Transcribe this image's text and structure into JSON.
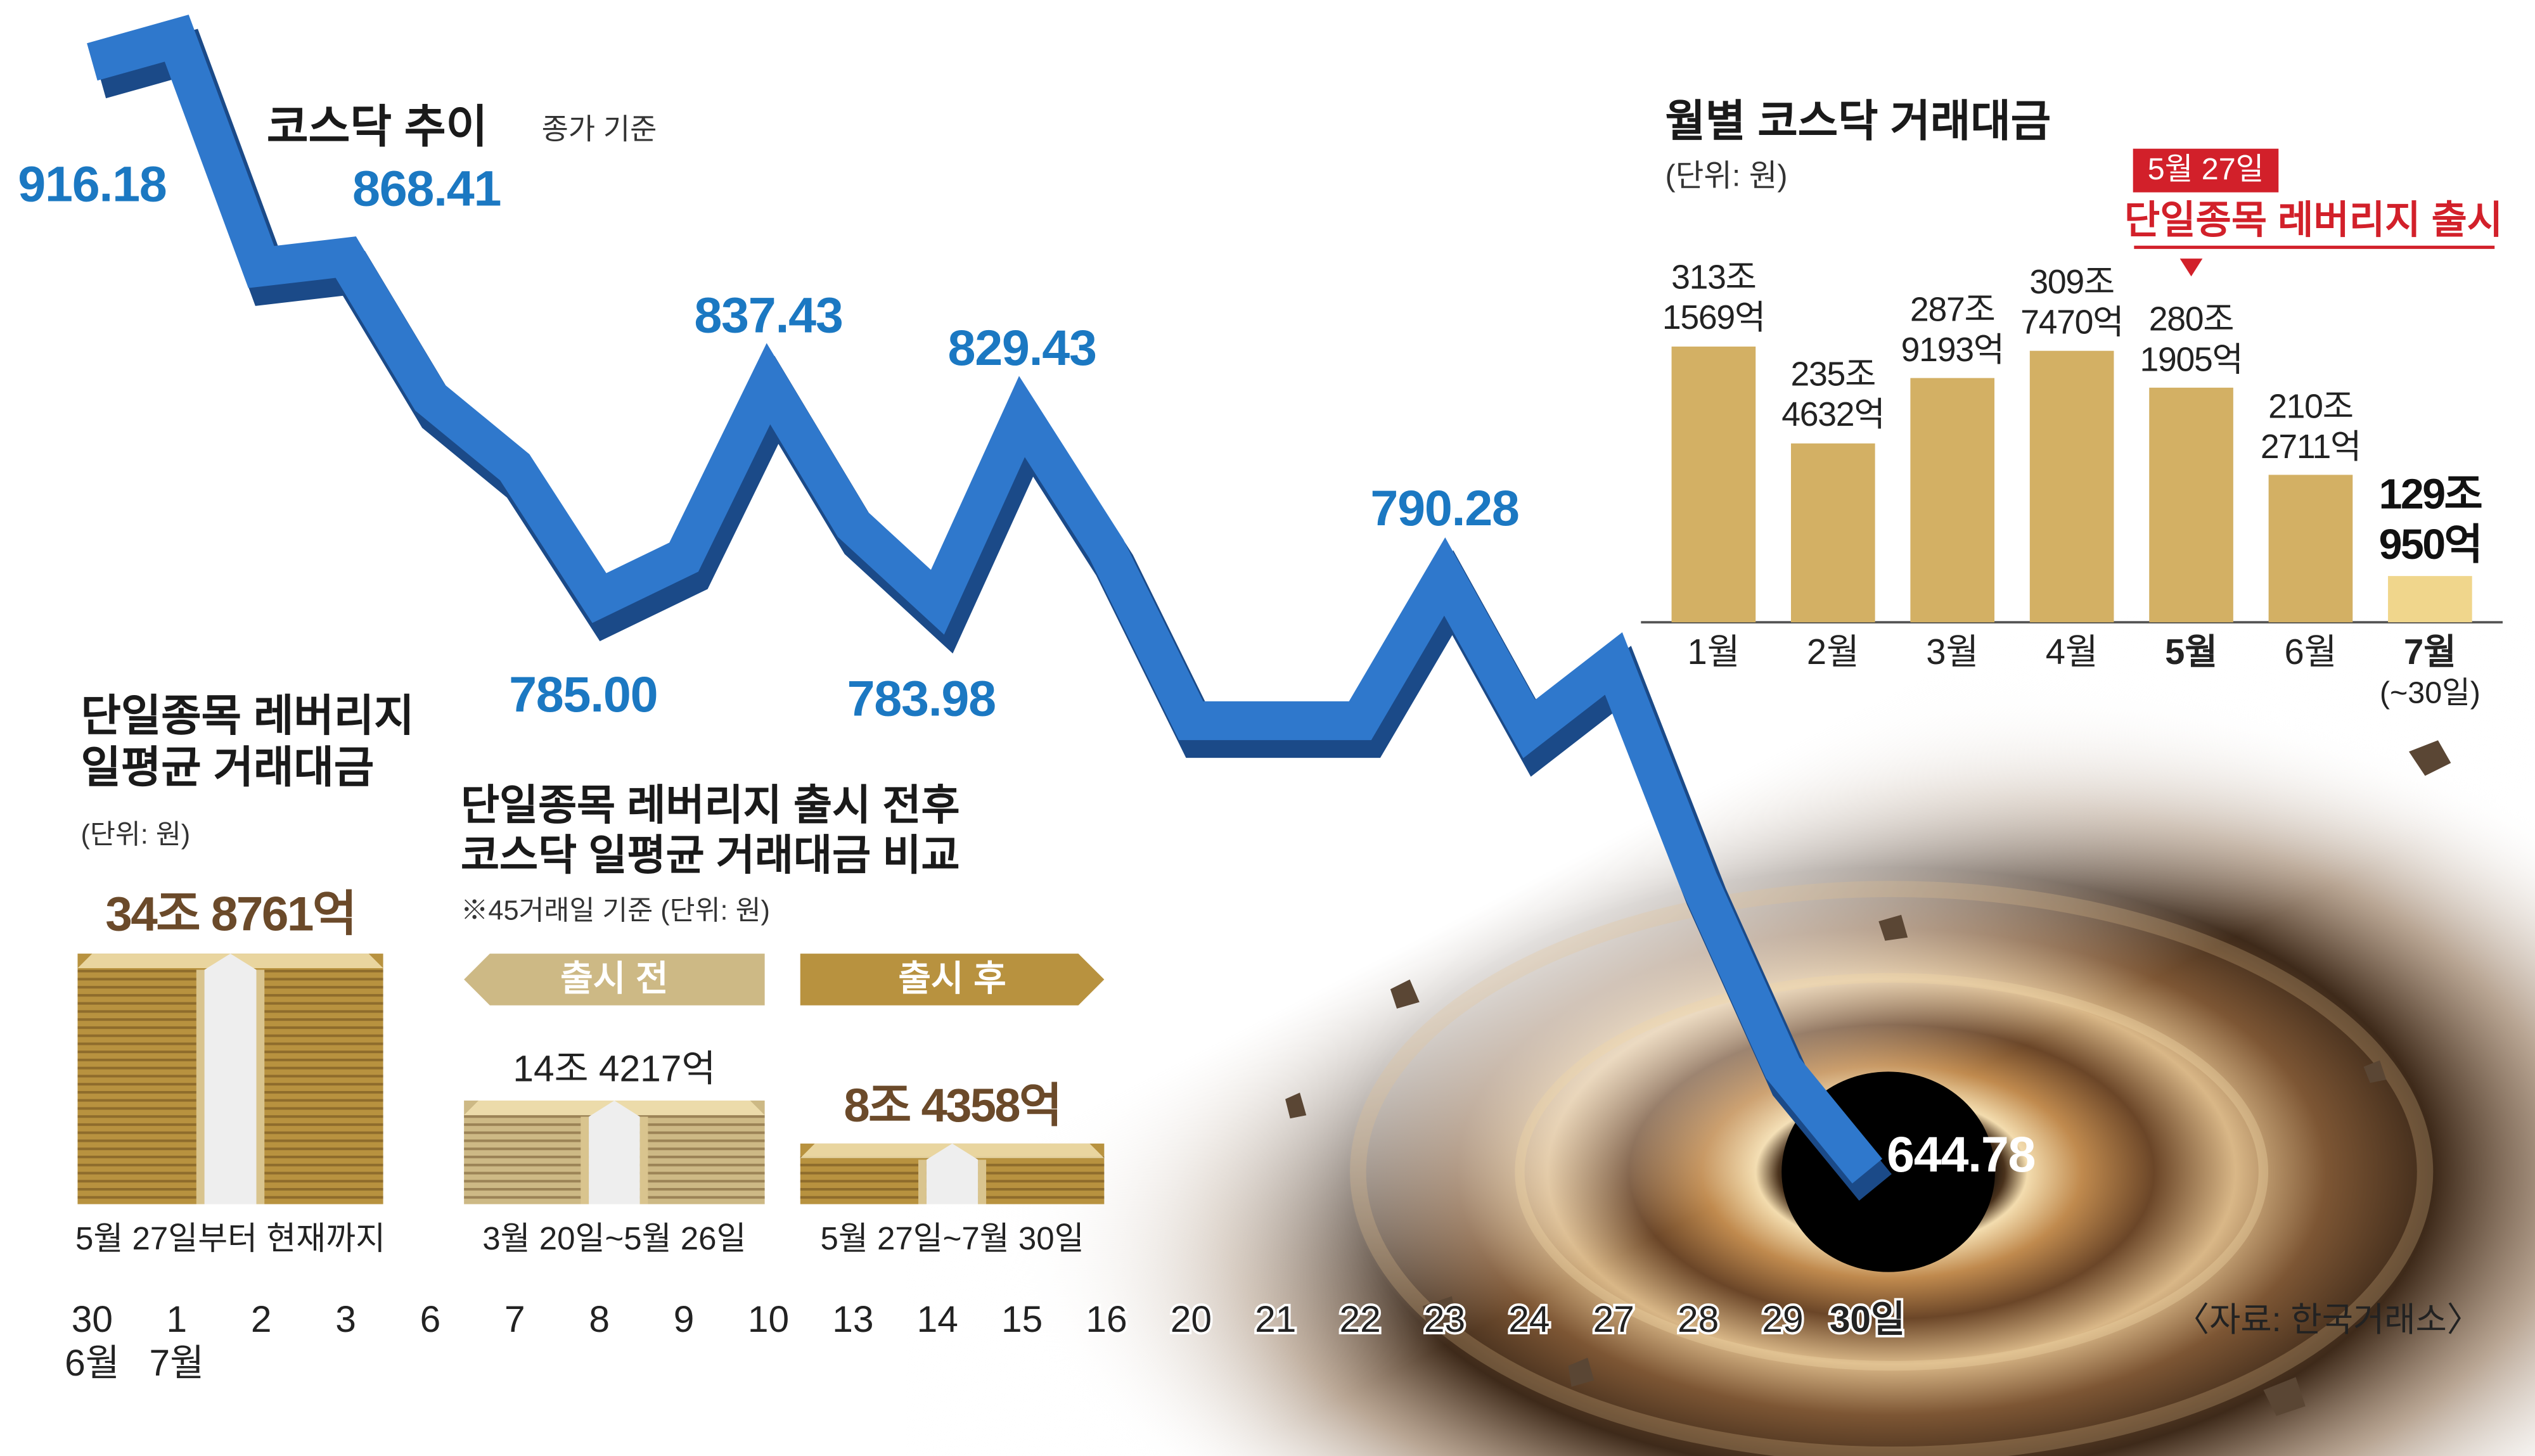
{
  "chart_data": [
    {
      "type": "line",
      "title": "코스닥 추이",
      "subtitle": "종가 기준",
      "categories": [
        "30",
        "1",
        "2",
        "3",
        "6",
        "7",
        "8",
        "9",
        "10",
        "13",
        "14",
        "15",
        "16",
        "20",
        "21",
        "22",
        "23",
        "24",
        "27",
        "28",
        "29",
        "30일"
      ],
      "category_months": [
        "6월",
        "7월",
        null,
        null,
        null,
        null,
        null,
        null,
        null,
        null,
        null,
        null,
        null,
        null,
        null,
        null,
        null,
        null,
        null,
        null,
        null,
        null
      ],
      "values": [
        916.18,
        922,
        866,
        868.41,
        834,
        817,
        785.0,
        795,
        837.43,
        803,
        783.98,
        829.43,
        797,
        755,
        755,
        755,
        790.28,
        753,
        769,
        716,
        670,
        644.78
      ],
      "value_labels": [
        "916.18",
        null,
        null,
        "868.41",
        null,
        null,
        "785.00",
        null,
        "837.43",
        null,
        "783.98",
        "829.43",
        null,
        null,
        null,
        null,
        "790.28",
        null,
        null,
        null,
        null,
        "644.78"
      ],
      "color": "#2f78cc",
      "label_color": "#1b78c2",
      "ylim": [
        630,
        925
      ]
    },
    {
      "type": "bar",
      "title": "월별 코스닥 거래대금",
      "subtitle": "(단위: 원)",
      "categories": [
        "1월",
        "2월",
        "3월",
        "4월",
        "5월",
        "6월",
        "7월"
      ],
      "category_notes": [
        null,
        null,
        null,
        null,
        null,
        null,
        "(~30일)"
      ],
      "values": [
        313.1569,
        235.4632,
        287.9193,
        309.747,
        280.1905,
        210.2711,
        129.095
      ],
      "value_labels": [
        "313조\n1569억",
        "235조\n4632억",
        "287조\n9193억",
        "309조\n7470억",
        "280조\n1905억",
        "210조\n2711억",
        "129조\n950억"
      ],
      "color": "#d3b064",
      "ylim": [
        92,
        350
      ],
      "annotation": {
        "date": "5월 27일",
        "text": "단일종목 레버리지 출시"
      }
    },
    {
      "type": "pictogram",
      "title": "단일종목 레버리지\n일평균 거래대금",
      "subtitle": "(단위: 원)",
      "values": [
        34.8761
      ],
      "value_labels": [
        "34조 8761억"
      ],
      "periods": [
        "5월 27일부터 현재까지"
      ],
      "colors": [
        "#b8923f"
      ],
      "ylim": [
        0,
        36
      ]
    },
    {
      "type": "pictogram",
      "title": "단일종목 레버리지 출시 전후\n코스닥 일평균 거래대금 비교",
      "subtitle": "※45거래일 기준  (단위: 원)",
      "categories": [
        "출시 전",
        "출시 후"
      ],
      "values": [
        14.4217,
        8.4358
      ],
      "value_labels": [
        "14조 4217억",
        "8조 4358억"
      ],
      "periods": [
        "3월 20일~5월 26일",
        "5월 27일~7월 30일"
      ],
      "colors": [
        "#cdb985",
        "#b8923f"
      ],
      "ylim": [
        0,
        36
      ]
    }
  ],
  "source": "〈자료: 한국거래소〉"
}
